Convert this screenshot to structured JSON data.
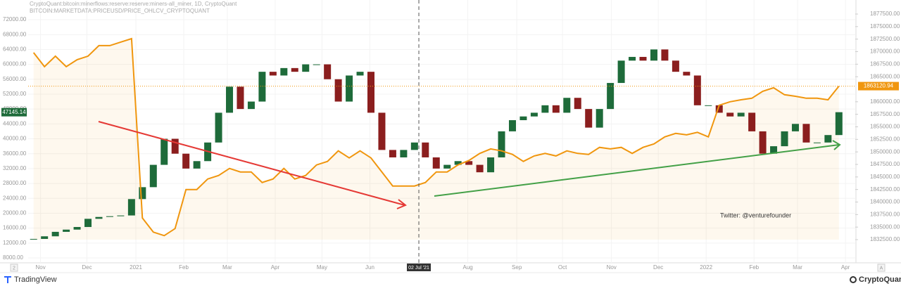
{
  "header": {
    "title": "CryptoQuant:bitcoin:minerflows:reserve:reserve:miners-all_miner, 1D, CryptoQuant",
    "subtitle": "BITCOIN:MARKETDATA:PRICEUSD/PRICE_OHLCV_CRYPTOQUANT"
  },
  "chart_data": {
    "type": "candlestick",
    "xlim": [
      0,
      76
    ],
    "xticks": [
      {
        "value": 1.14,
        "label": "Nov"
      },
      {
        "value": 5.4,
        "label": "Dec"
      },
      {
        "value": 9.9,
        "label": "2021"
      },
      {
        "value": 14.3,
        "label": "Feb"
      },
      {
        "value": 18.3,
        "label": "Mar"
      },
      {
        "value": 22.7,
        "label": "Apr"
      },
      {
        "value": 27,
        "label": "May"
      },
      {
        "value": 31.4,
        "label": "Jun"
      },
      {
        "value": 40.4,
        "label": "Aug"
      },
      {
        "value": 44.9,
        "label": "Sep"
      },
      {
        "value": 49.1,
        "label": "Oct"
      },
      {
        "value": 53.6,
        "label": "Nov"
      },
      {
        "value": 57.9,
        "label": "Dec"
      },
      {
        "value": 62.3,
        "label": "2022"
      },
      {
        "value": 66.7,
        "label": "Feb"
      },
      {
        "value": 70.7,
        "label": "Mar"
      },
      {
        "value": 75.1,
        "label": "Apr"
      }
    ],
    "crosshair": {
      "value": 35.9,
      "label": "02 Jul '21"
    },
    "ylim": [
      8000,
      72000
    ],
    "yticks": [
      {
        "value": 8000,
        "label": "8000.00"
      },
      {
        "value": 12000,
        "label": "12000.00"
      },
      {
        "value": 16000,
        "label": "16000.00"
      },
      {
        "value": 20000,
        "label": "20000.00"
      },
      {
        "value": 24000,
        "label": "24000.00"
      },
      {
        "value": 28000,
        "label": "28000.00"
      },
      {
        "value": 32000,
        "label": "32000.00"
      },
      {
        "value": 36000,
        "label": "36000.00"
      },
      {
        "value": 40000,
        "label": "40000.00"
      },
      {
        "value": 44000,
        "label": "44000.00"
      },
      {
        "value": 48000,
        "label": "48000.00"
      },
      {
        "value": 52000,
        "label": "52000.00"
      },
      {
        "value": 56000,
        "label": "56000.00"
      },
      {
        "value": 60000,
        "label": "60000.00"
      },
      {
        "value": 64000,
        "label": "64000.00"
      },
      {
        "value": 68000,
        "label": "68000.00"
      },
      {
        "value": 72000,
        "label": "72000.00"
      }
    ],
    "y2lim": [
      1832500,
      1877500
    ],
    "y2ticks": [
      {
        "value": 1832500,
        "label": "1832500.00"
      },
      {
        "value": 1835000,
        "label": "1835000.00"
      },
      {
        "value": 1837500,
        "label": "1837500.00"
      },
      {
        "value": 1840000,
        "label": "1840000.00"
      },
      {
        "value": 1842500,
        "label": "1842500.00"
      },
      {
        "value": 1845000,
        "label": "1845000.00"
      },
      {
        "value": 1847500,
        "label": "1847500.00"
      },
      {
        "value": 1850000,
        "label": "1850000.00"
      },
      {
        "value": 1852500,
        "label": "1852500.00"
      },
      {
        "value": 1855000,
        "label": "1855000.00"
      },
      {
        "value": 1857500,
        "label": "1857500.00"
      },
      {
        "value": 1860000,
        "label": "1860000.00"
      },
      {
        "value": 1865000,
        "label": "1865000.00"
      },
      {
        "value": 1867500,
        "label": "1867500.00"
      },
      {
        "value": 1870000,
        "label": "1870000.00"
      },
      {
        "value": 1872500,
        "label": "1872500.00"
      },
      {
        "value": 1875000,
        "label": "1875000.00"
      },
      {
        "value": 1877500,
        "label": "1877500.00"
      }
    ],
    "grid": true,
    "series": [
      {
        "type": "candlestick",
        "up_color": "#1e6b3a",
        "down_color": "#8b1e1e",
        "values": [
          13100,
          13800,
          15000,
          15600,
          16300,
          18500,
          19000,
          19200,
          19400,
          23800,
          27000,
          33000,
          40000,
          36000,
          32000,
          34000,
          39000,
          47000,
          54000,
          48000,
          50000,
          58000,
          57000,
          59000,
          58000,
          60000,
          60000,
          56000,
          50000,
          57000,
          58000,
          47000,
          37000,
          35000,
          37000,
          39000,
          35000,
          32000,
          33000,
          34000,
          33000,
          31000,
          35000,
          42000,
          45000,
          46000,
          47000,
          49000,
          47000,
          51000,
          48000,
          43000,
          48000,
          55000,
          61000,
          62000,
          61000,
          64000,
          61000,
          58000,
          57000,
          49000,
          49000,
          47000,
          46000,
          47000,
          42000,
          36000,
          38000,
          42000,
          44000,
          39000,
          39000,
          41000,
          47145.14
        ]
      },
      {
        "type": "line",
        "axis": "y2",
        "color": "#f0960e",
        "values": [
          1869800,
          1867000,
          1869100,
          1867000,
          1868400,
          1869100,
          1871200,
          1871200,
          1871900,
          1872600,
          1836800,
          1834000,
          1833300,
          1834700,
          1842500,
          1842500,
          1844600,
          1845300,
          1846700,
          1846000,
          1846000,
          1843900,
          1844600,
          1846700,
          1844600,
          1845300,
          1847400,
          1848100,
          1850200,
          1848800,
          1850200,
          1848800,
          1846000,
          1843200,
          1843200,
          1843200,
          1843900,
          1846000,
          1846000,
          1847400,
          1848300,
          1849700,
          1850600,
          1850200,
          1849500,
          1848100,
          1849200,
          1849700,
          1849200,
          1850200,
          1849700,
          1849500,
          1850900,
          1850600,
          1850900,
          1849700,
          1850900,
          1851600,
          1853000,
          1853700,
          1853400,
          1853900,
          1853000,
          1859300,
          1860000,
          1860400,
          1860700,
          1862100,
          1862800,
          1861400,
          1861100,
          1860700,
          1860700,
          1860400,
          1863120.94
        ]
      }
    ],
    "annotation": "Twitter: @venturefounder"
  },
  "controls": {
    "left": "2",
    "right": "A"
  },
  "footer": {
    "left": "TradingView",
    "right": "CryptoQuant"
  }
}
